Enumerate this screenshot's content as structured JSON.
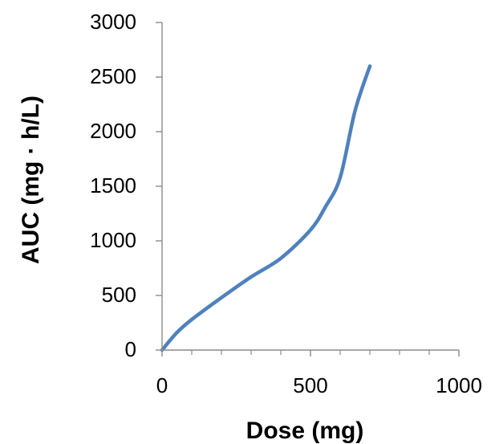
{
  "chart_data": {
    "type": "line",
    "title": "",
    "xlabel": "Dose (mg)",
    "ylabel": "AUC (mg · h/L)",
    "xlim": [
      0,
      1000
    ],
    "ylim": [
      0,
      3000
    ],
    "x_ticks": [
      0,
      500,
      1000
    ],
    "y_ticks": [
      0,
      500,
      1000,
      1500,
      2000,
      2500,
      3000
    ],
    "x_minor_ticks": [
      100,
      200,
      300,
      400,
      600,
      700,
      800,
      900
    ],
    "grid": false,
    "legend": "none",
    "series": [
      {
        "color": "#4f81bd",
        "x": [
          0,
          50,
          100,
          200,
          300,
          400,
          500,
          550,
          600,
          650,
          700
        ],
        "y": [
          0,
          160,
          280,
          480,
          670,
          840,
          1100,
          1310,
          1580,
          2190,
          2600
        ]
      }
    ]
  }
}
